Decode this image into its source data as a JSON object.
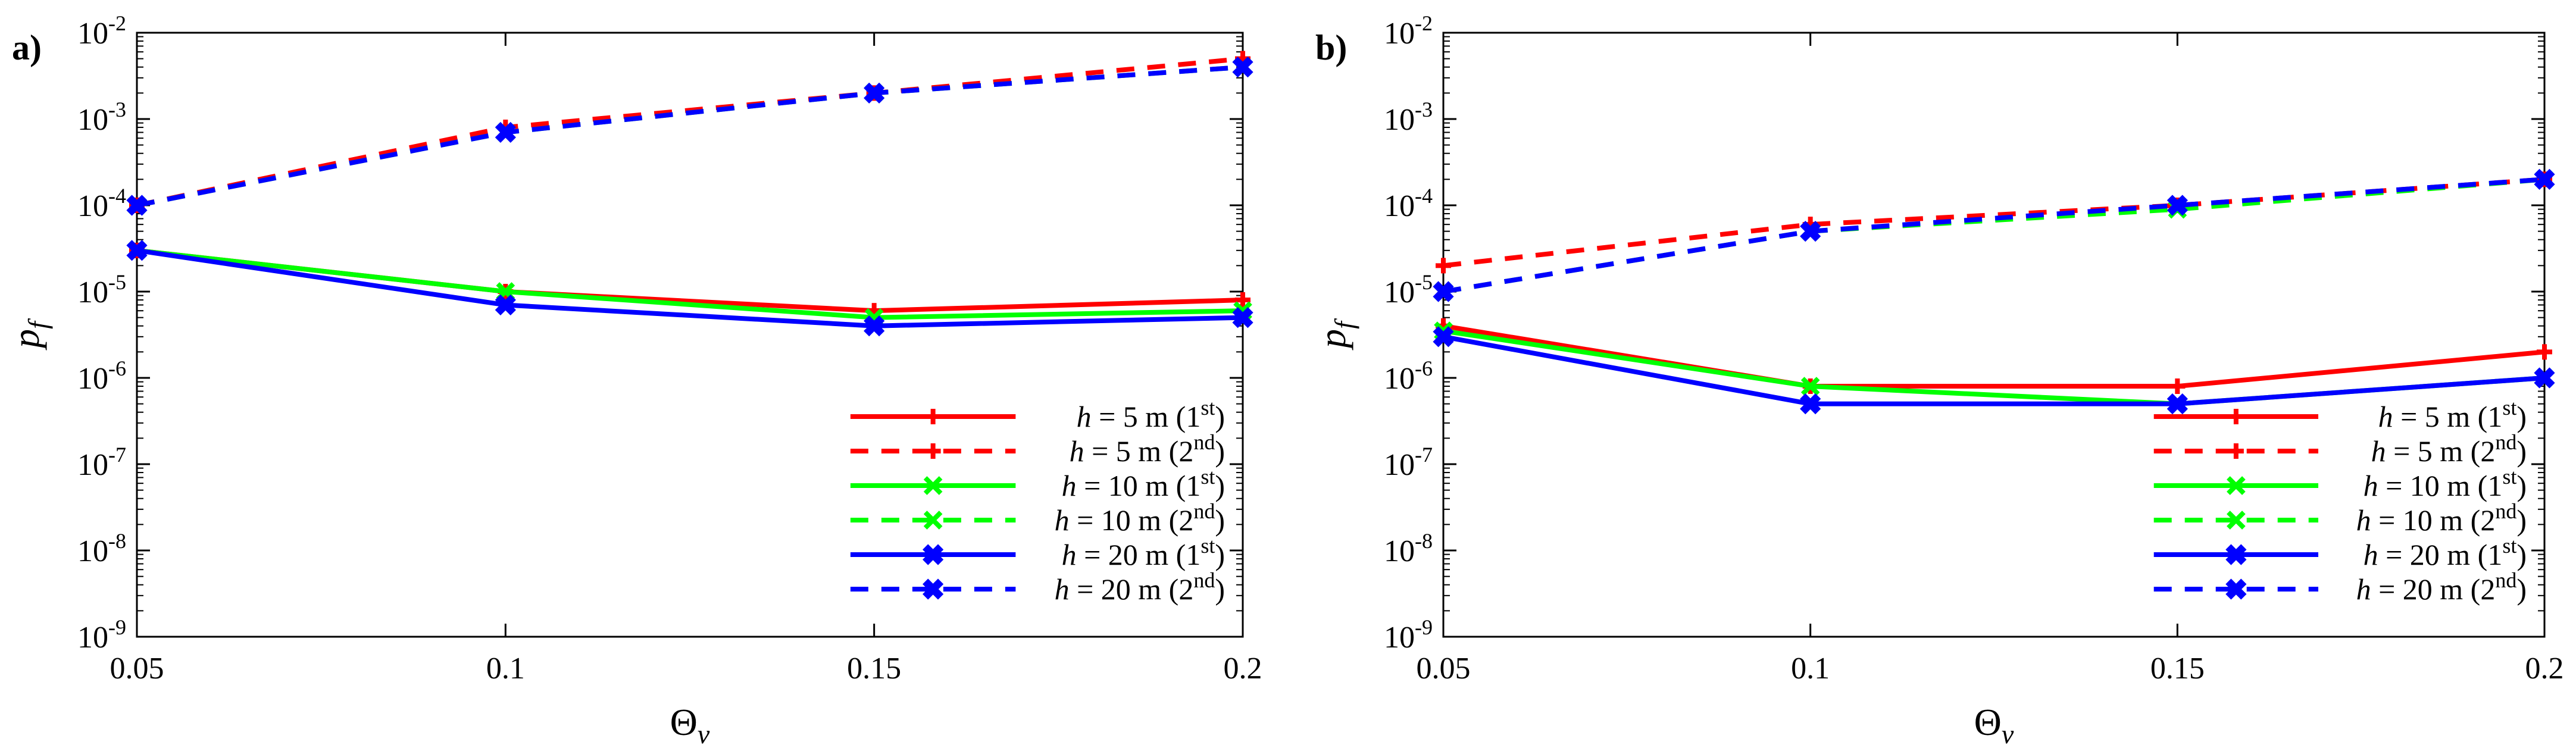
{
  "figure": {
    "panels": [
      "a)",
      "b)"
    ]
  },
  "chart_data": [
    {
      "panel": "a)",
      "type": "line",
      "x": [
        0.05,
        0.1,
        0.15,
        0.2
      ],
      "xlabel": "Θv",
      "ylabel": "pf",
      "xlim": [
        0.05,
        0.2
      ],
      "ylim": [
        1e-09,
        0.01
      ],
      "yscale": "log",
      "xticks": [
        "0.05",
        "0.1",
        "0.15",
        "0.2"
      ],
      "yticks": [
        {
          "base": "10",
          "exp": "-9"
        },
        {
          "base": "10",
          "exp": "-8"
        },
        {
          "base": "10",
          "exp": "-7"
        },
        {
          "base": "10",
          "exp": "-6"
        },
        {
          "base": "10",
          "exp": "-5"
        },
        {
          "base": "10",
          "exp": "-4"
        },
        {
          "base": "10",
          "exp": "-3"
        },
        {
          "base": "10",
          "exp": "-2"
        }
      ],
      "legend_position": "bottom-right",
      "series": [
        {
          "name": "h = 5 m (1st)",
          "h": "5",
          "order": "st",
          "color": "#ff0000",
          "dash": "solid",
          "marker": "plus",
          "values": [
            3e-05,
            1e-05,
            6e-06,
            8e-06
          ]
        },
        {
          "name": "h = 5 m (2nd)",
          "h": "5",
          "order": "nd",
          "color": "#ff0000",
          "dash": "dashed",
          "marker": "plus",
          "values": [
            0.0001,
            0.0008,
            0.002,
            0.005
          ]
        },
        {
          "name": "h = 10 m (1st)",
          "h": "10",
          "order": "st",
          "color": "#00ff00",
          "dash": "solid",
          "marker": "x",
          "values": [
            3e-05,
            1e-05,
            5e-06,
            6e-06
          ]
        },
        {
          "name": "h = 10 m (2nd)",
          "h": "10",
          "order": "nd",
          "color": "#00ff00",
          "dash": "dashed",
          "marker": "x",
          "values": [
            0.0001,
            0.0007,
            0.002,
            0.004
          ]
        },
        {
          "name": "h = 20 m (1st)",
          "h": "20",
          "order": "st",
          "color": "#0000ff",
          "dash": "solid",
          "marker": "xx",
          "values": [
            3e-05,
            7e-06,
            4e-06,
            5e-06
          ]
        },
        {
          "name": "h = 20 m (2nd)",
          "h": "20",
          "order": "nd",
          "color": "#0000ff",
          "dash": "dashed",
          "marker": "xx",
          "values": [
            0.0001,
            0.0007,
            0.002,
            0.004
          ]
        }
      ]
    },
    {
      "panel": "b)",
      "type": "line",
      "x": [
        0.05,
        0.1,
        0.15,
        0.2
      ],
      "xlabel": "Θv",
      "ylabel": "pf",
      "xlim": [
        0.05,
        0.2
      ],
      "ylim": [
        1e-09,
        0.01
      ],
      "yscale": "log",
      "xticks": [
        "0.05",
        "0.1",
        "0.15",
        "0.2"
      ],
      "yticks": [
        {
          "base": "10",
          "exp": "-9"
        },
        {
          "base": "10",
          "exp": "-8"
        },
        {
          "base": "10",
          "exp": "-7"
        },
        {
          "base": "10",
          "exp": "-6"
        },
        {
          "base": "10",
          "exp": "-5"
        },
        {
          "base": "10",
          "exp": "-4"
        },
        {
          "base": "10",
          "exp": "-3"
        },
        {
          "base": "10",
          "exp": "-2"
        }
      ],
      "legend_position": "bottom-right",
      "series": [
        {
          "name": "h = 5 m (1st)",
          "h": "5",
          "order": "st",
          "color": "#ff0000",
          "dash": "solid",
          "marker": "plus",
          "values": [
            4e-06,
            8e-07,
            8e-07,
            2e-06
          ]
        },
        {
          "name": "h = 5 m (2nd)",
          "h": "5",
          "order": "nd",
          "color": "#ff0000",
          "dash": "dashed",
          "marker": "plus",
          "values": [
            2e-05,
            6e-05,
            0.0001,
            0.0002
          ]
        },
        {
          "name": "h = 10 m (1st)",
          "h": "10",
          "order": "st",
          "color": "#00ff00",
          "dash": "solid",
          "marker": "x",
          "values": [
            3.5e-06,
            8e-07,
            5e-07,
            1e-06
          ]
        },
        {
          "name": "h = 10 m (2nd)",
          "h": "10",
          "order": "nd",
          "color": "#00ff00",
          "dash": "dashed",
          "marker": "x",
          "values": [
            1e-05,
            5e-05,
            9e-05,
            0.0002
          ]
        },
        {
          "name": "h = 20 m (1st)",
          "h": "20",
          "order": "st",
          "color": "#0000ff",
          "dash": "solid",
          "marker": "xx",
          "values": [
            3e-06,
            5e-07,
            5e-07,
            1e-06
          ]
        },
        {
          "name": "h = 20 m (2nd)",
          "h": "20",
          "order": "nd",
          "color": "#0000ff",
          "dash": "dashed",
          "marker": "xx",
          "values": [
            1e-05,
            5e-05,
            0.0001,
            0.0002
          ]
        }
      ]
    }
  ]
}
